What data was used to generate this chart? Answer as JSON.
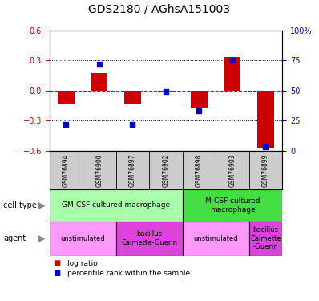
{
  "title": "GDS2180 / AGhsA151003",
  "samples": [
    "GSM76894",
    "GSM76900",
    "GSM76897",
    "GSM76902",
    "GSM76898",
    "GSM76903",
    "GSM76899"
  ],
  "log_ratio": [
    -0.13,
    0.17,
    -0.13,
    -0.02,
    -0.18,
    0.33,
    -0.58
  ],
  "percentile_rank": [
    22,
    72,
    22,
    49,
    33,
    75,
    3
  ],
  "ylim_left": [
    -0.6,
    0.6
  ],
  "ylim_right": [
    0,
    100
  ],
  "yticks_left": [
    -0.6,
    -0.3,
    0,
    0.3,
    0.6
  ],
  "yticks_right": [
    0,
    25,
    50,
    75,
    100
  ],
  "bar_color_red": "#cc0000",
  "bar_color_blue": "#0000cc",
  "zero_line_color": "#cc0000",
  "cell_type_groups": [
    {
      "label": "GM-CSF cultured macrophage",
      "start": 0,
      "end": 4,
      "color": "#aaffaa"
    },
    {
      "label": "M-CSF cultured\nmacrophage",
      "start": 4,
      "end": 7,
      "color": "#44dd44"
    }
  ],
  "agent_groups": [
    {
      "label": "unstimulated",
      "start": 0,
      "end": 2,
      "color": "#ff99ff"
    },
    {
      "label": "bacillus\nCalmette-Guerin",
      "start": 2,
      "end": 4,
      "color": "#dd44dd"
    },
    {
      "label": "unstimulated",
      "start": 4,
      "end": 6,
      "color": "#ff99ff"
    },
    {
      "label": "bacillus\nCalmette\n-Guerin",
      "start": 6,
      "end": 7,
      "color": "#dd44dd"
    }
  ],
  "bar_width": 0.5,
  "title_fontsize": 10,
  "sample_fontsize": 5.5,
  "cell_fontsize": 6.5,
  "agent_fontsize": 6.0,
  "legend_fontsize": 6.5,
  "label_row_color": "#cccccc",
  "tick_fontsize": 7
}
